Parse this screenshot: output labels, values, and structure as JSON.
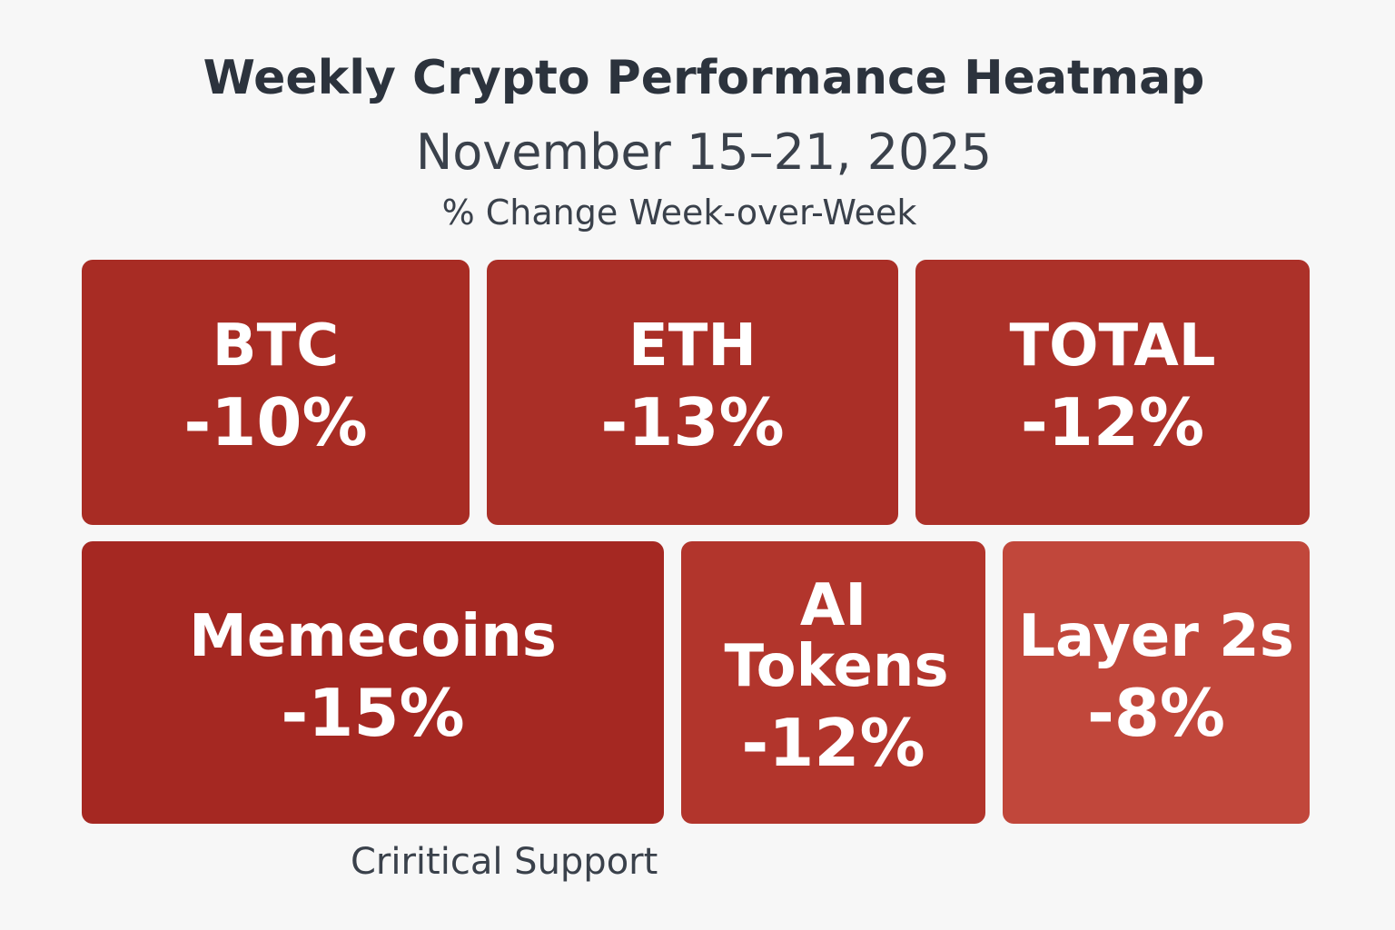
{
  "chart_data": {
    "type": "heatmap",
    "title": "Weekly Crypto Performance Heatmap",
    "subtitle": "November 15–21, 2025",
    "value_axis_label": "% Change Week-over-Week",
    "categories": [
      "BTC",
      "ETH",
      "TOTAL",
      "Memecoins",
      "AI Tokens",
      "Layer 2s"
    ],
    "values": [
      -10,
      -13,
      -12,
      -15,
      -12,
      -8
    ],
    "value_labels": [
      "-10%",
      "-13%",
      "-12%",
      "-15%",
      "-12%",
      "-8%"
    ],
    "colors": [
      "#a82c24",
      "#aa2f27",
      "#ac3129",
      "#a52822",
      "#b2352c",
      "#c1473b"
    ],
    "annotation": "Criritical Support"
  }
}
